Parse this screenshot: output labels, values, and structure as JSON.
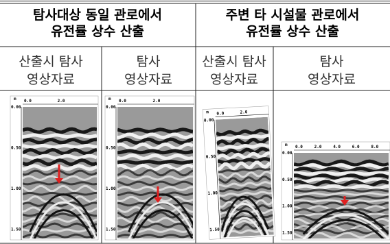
{
  "header": [
    [
      "탐사대상 동일 관로에서",
      "유전률 상수 산출"
    ],
    [
      "주변 타 시설물 관로에서",
      "유전률 상수 산출"
    ]
  ],
  "subheader": [
    [
      "산출시 탐사",
      "영상자료"
    ],
    [
      "탐사",
      "영상자료"
    ],
    [
      "산출시 탐사",
      "영상자료"
    ],
    [
      "탐사",
      "영상자료"
    ]
  ],
  "images": [
    {
      "unit": "m",
      "x_ticks": [
        "0.0",
        "2.0"
      ],
      "depth_ticks": [
        "0.00",
        "0.50",
        "1.00",
        "1.50"
      ]
    },
    {
      "unit": "m",
      "x_ticks": [
        "0.0",
        "2.0"
      ],
      "depth_ticks": [
        "0.00",
        "0.50",
        "1.00",
        "1.50"
      ]
    },
    {
      "unit": "m",
      "x_ticks": [
        "0.0",
        "2.0"
      ],
      "depth_ticks": [
        "0.00",
        "0.50",
        "1.00",
        "1.50"
      ]
    },
    {
      "unit": "m",
      "x_ticks": [
        "0.0",
        "2.0",
        "4.0",
        "6.0",
        "8.0"
      ],
      "depth_ticks": [
        "0.00",
        "0.50",
        "1.00",
        "1.50"
      ]
    }
  ]
}
